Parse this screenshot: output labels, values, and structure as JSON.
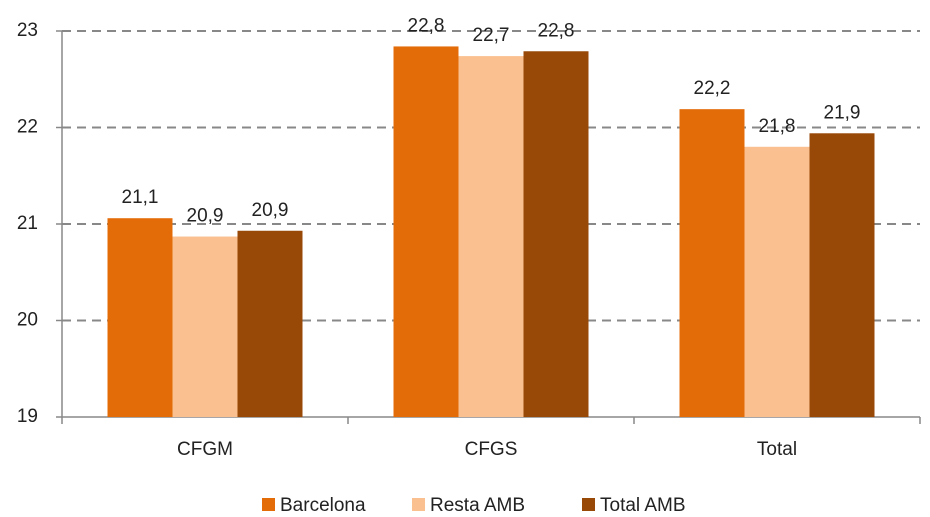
{
  "chart_data": {
    "type": "bar",
    "categories": [
      "CFGM",
      "CFGS",
      "Total"
    ],
    "series": [
      {
        "name": "Barcelona",
        "color": "#e36c09",
        "values": [
          21.06,
          22.84,
          22.19
        ],
        "value_labels": [
          "21,1",
          "22,8",
          "22,2"
        ]
      },
      {
        "name": "Resta AMB",
        "color": "#fac090",
        "values": [
          20.87,
          22.74,
          21.8
        ],
        "value_labels": [
          "20,9",
          "22,7",
          "21,8"
        ]
      },
      {
        "name": "Total AMB",
        "color": "#984807",
        "values": [
          20.93,
          22.79,
          21.94
        ],
        "value_labels": [
          "20,9",
          "22,8",
          "21,9"
        ]
      }
    ],
    "ylim": [
      19,
      23
    ],
    "yticks": [
      19,
      20,
      21,
      22,
      23
    ],
    "grid": true,
    "legend": "bottom"
  }
}
